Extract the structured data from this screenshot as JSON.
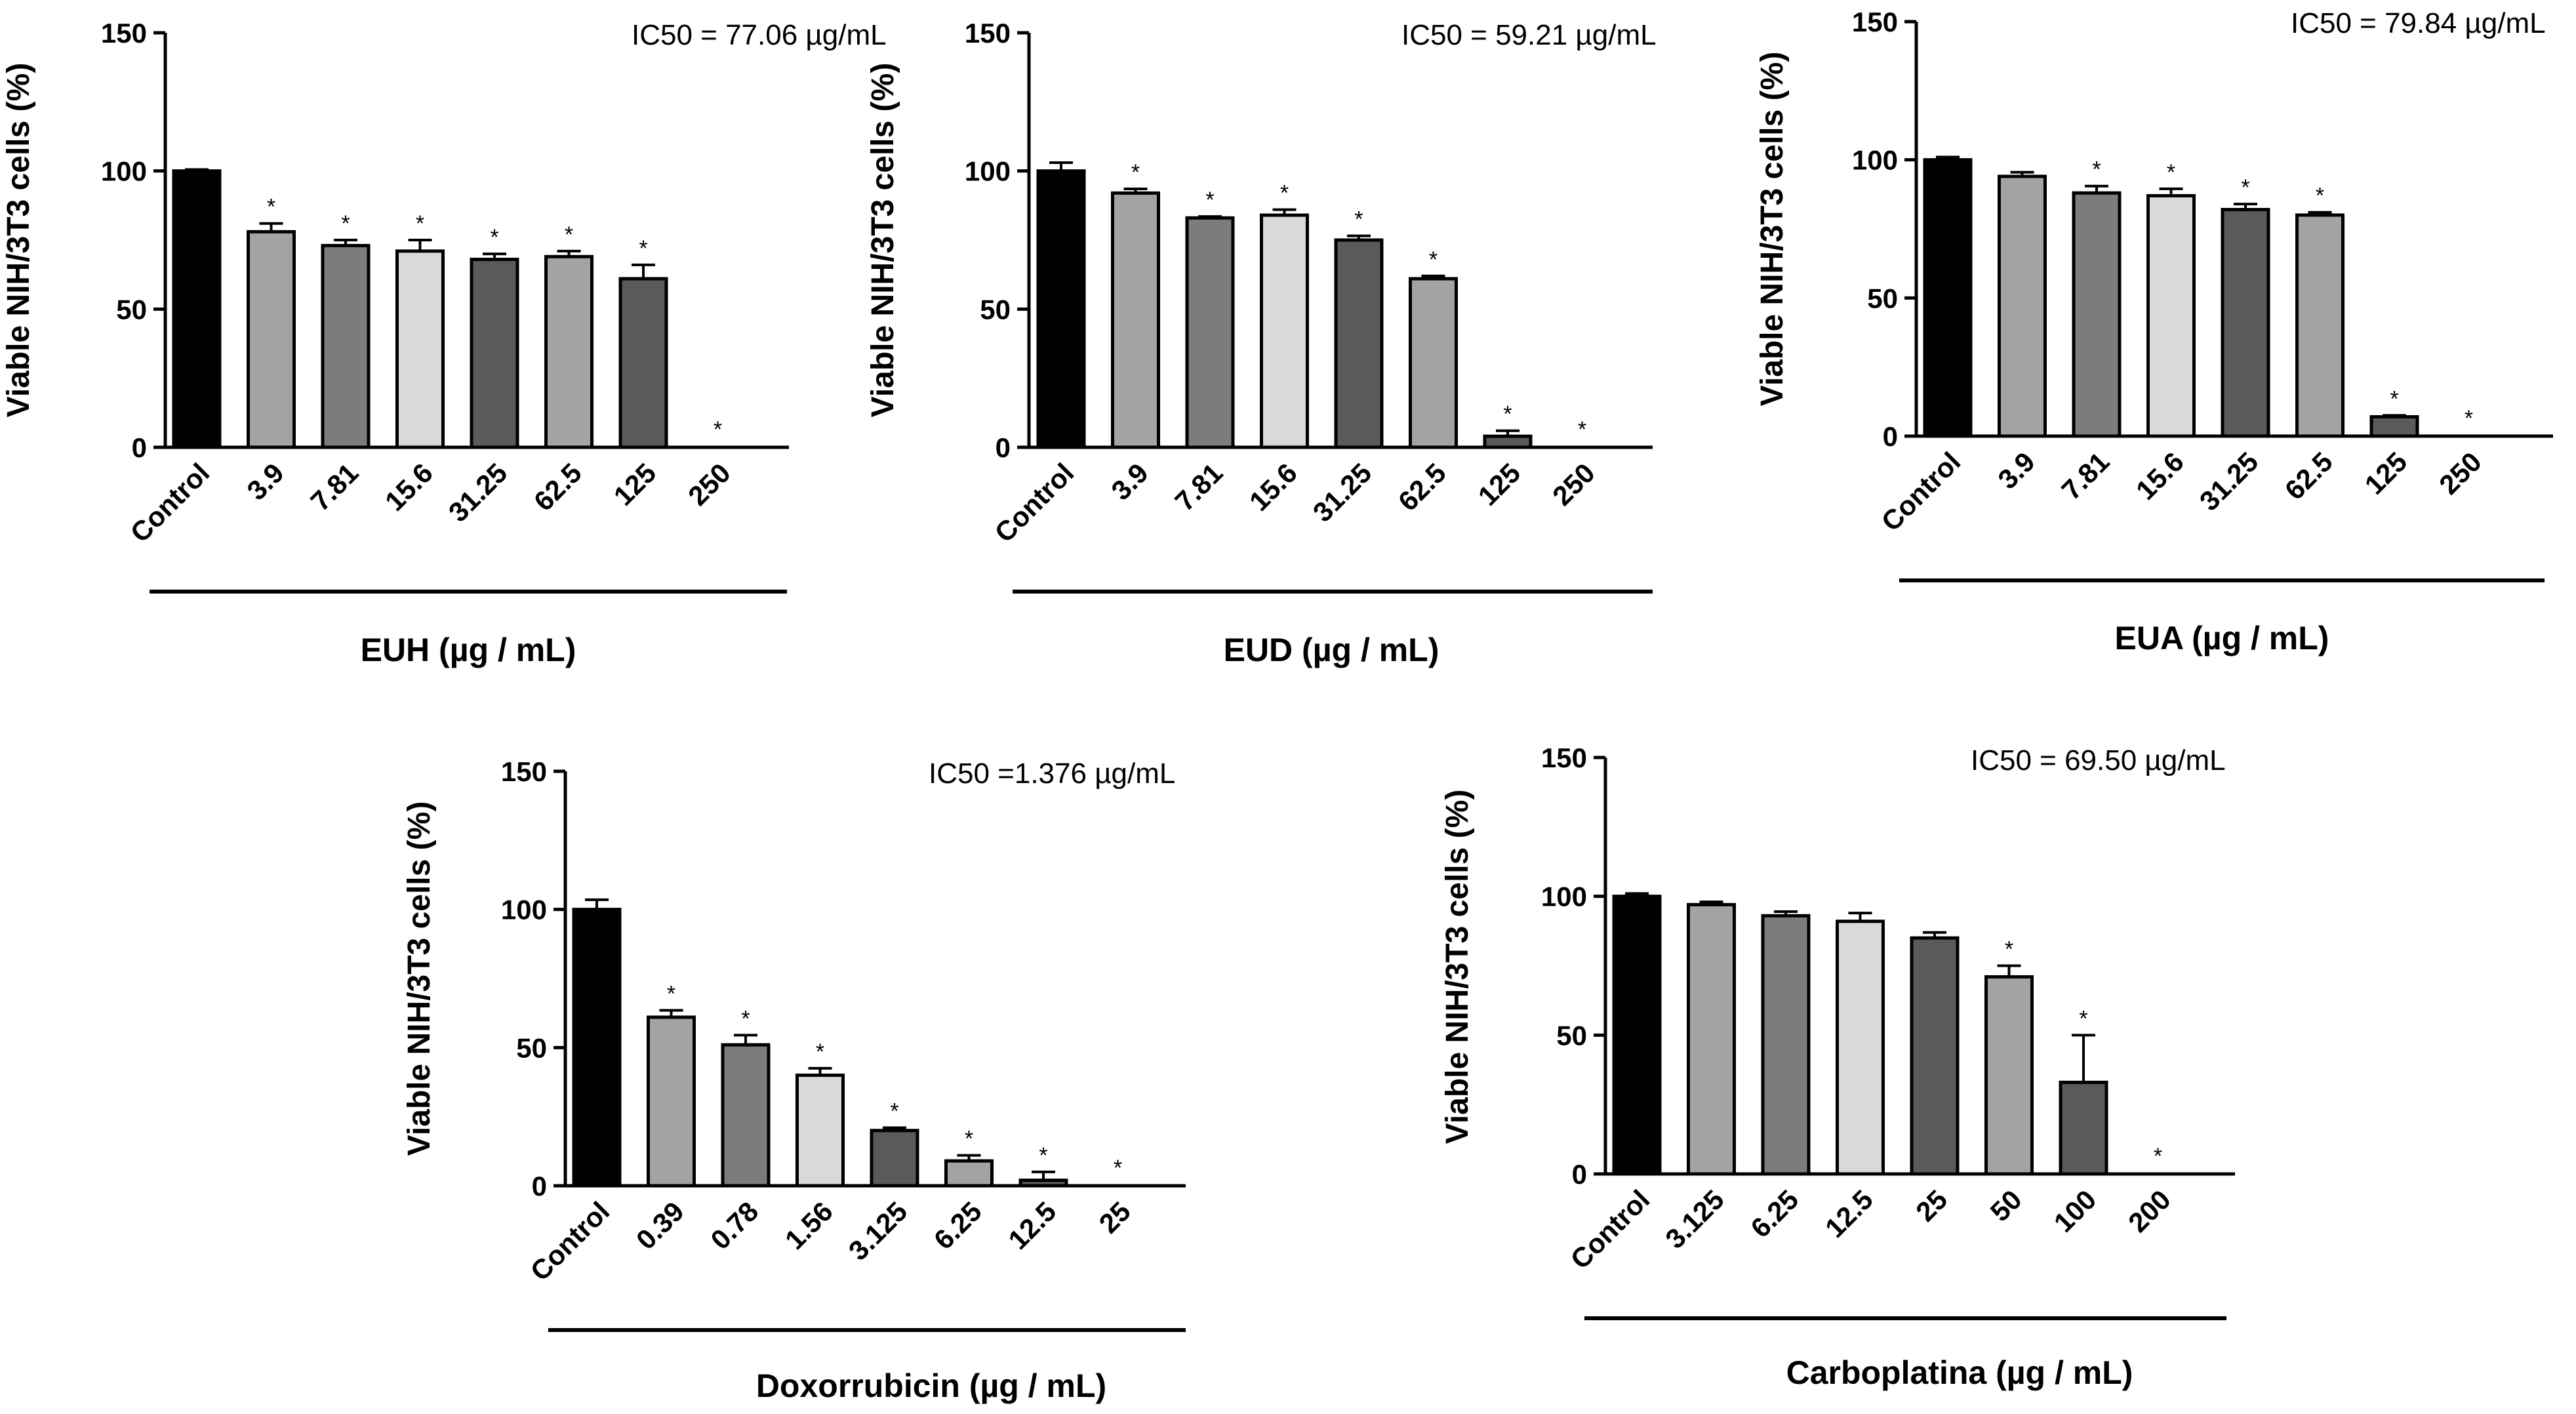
{
  "chart_data": [
    {
      "type": "bar",
      "title": "",
      "annotation": "IC50 = 77.06 µg/mL",
      "ylabel": "Viable NIH/3T3 cells (%)",
      "xlabel": "EUH (µg / mL)",
      "ylim": [
        0,
        150
      ],
      "yticks": [
        "0",
        "50",
        "100",
        "150"
      ],
      "categories": [
        "Control",
        "3.9",
        "7.81",
        "15.6",
        "31.25",
        "62.5",
        "125",
        "250"
      ],
      "values": [
        100,
        78,
        73,
        71,
        68,
        69,
        61,
        0
      ],
      "errors": [
        0.5,
        3,
        2,
        4,
        2,
        2,
        5,
        0
      ],
      "significance": [
        "",
        "*",
        "*",
        "*",
        "*",
        "*",
        "*",
        "*"
      ],
      "bar_colors": [
        "#000000",
        "#a3a3a6",
        "#7c7c7c",
        "#d9d9d9",
        "#5a5a5a",
        "#a3a3a6",
        "#5a5a5a",
        "#5a5a5a"
      ]
    },
    {
      "type": "bar",
      "title": "",
      "annotation": "IC50 = 59.21 µg/mL",
      "ylabel": "Viable NIH/3T3 cells (%)",
      "xlabel": "EUD (µg / mL)",
      "ylim": [
        0,
        150
      ],
      "yticks": [
        "0",
        "50",
        "100",
        "150"
      ],
      "categories": [
        "Control",
        "3.9",
        "7.81",
        "15.6",
        "31.25",
        "62.5",
        "125",
        "250"
      ],
      "values": [
        100,
        92,
        83,
        84,
        75,
        61,
        4,
        0
      ],
      "errors": [
        3,
        1.5,
        0.5,
        2,
        1.5,
        1,
        2,
        0
      ],
      "significance": [
        "",
        "*",
        "*",
        "*",
        "*",
        "*",
        "*",
        "*"
      ],
      "bar_colors": [
        "#000000",
        "#a3a3a6",
        "#7c7c7c",
        "#d9d9d9",
        "#5a5a5a",
        "#a3a3a6",
        "#5a5a5a",
        "#5a5a5a"
      ]
    },
    {
      "type": "bar",
      "title": "",
      "annotation": "IC50 = 79.84 µg/mL",
      "ylabel": "Viable NIH/3T3 cells (%)",
      "xlabel": "EUA (µg / mL)",
      "ylim": [
        0,
        150
      ],
      "yticks": [
        "0",
        "50",
        "100",
        "150"
      ],
      "categories": [
        "Control",
        "3.9",
        "7.81",
        "15.6",
        "31.25",
        "62.5",
        "125",
        "250"
      ],
      "values": [
        100,
        94,
        88,
        87,
        82,
        80,
        7,
        0
      ],
      "errors": [
        1,
        1.5,
        2.5,
        2.5,
        2,
        1,
        0.5,
        0
      ],
      "significance": [
        "",
        "",
        "*",
        "*",
        "*",
        "*",
        "*",
        "*"
      ],
      "bar_colors": [
        "#000000",
        "#a3a3a6",
        "#7c7c7c",
        "#d9d9d9",
        "#5a5a5a",
        "#a3a3a6",
        "#5a5a5a",
        "#5a5a5a"
      ]
    },
    {
      "type": "bar",
      "title": "",
      "annotation": "IC50 =1.376 µg/mL",
      "ylabel": "Viable NIH/3T3 cells (%)",
      "xlabel": "Doxorrubicin (µg / mL)",
      "ylim": [
        0,
        150
      ],
      "yticks": [
        "0",
        "50",
        "100",
        "150"
      ],
      "categories": [
        "Control",
        "0.39",
        "0.78",
        "1.56",
        "3.125",
        "6.25",
        "12.5",
        "25"
      ],
      "values": [
        100,
        61,
        51,
        40,
        20,
        9,
        2,
        0
      ],
      "errors": [
        3.5,
        2.5,
        3.5,
        2.5,
        1,
        2,
        3,
        0
      ],
      "significance": [
        "",
        "*",
        "*",
        "*",
        "*",
        "*",
        "*",
        "*"
      ],
      "bar_colors": [
        "#000000",
        "#a3a3a6",
        "#7c7c7c",
        "#d9d9d9",
        "#5a5a5a",
        "#a3a3a6",
        "#5a5a5a",
        "#5a5a5a"
      ]
    },
    {
      "type": "bar",
      "title": "",
      "annotation": "IC50 = 69.50 µg/mL",
      "ylabel": "Viable NIH/3T3 cells (%)",
      "xlabel": "Carboplatina (µg / mL)",
      "ylim": [
        0,
        150
      ],
      "yticks": [
        "0",
        "50",
        "100",
        "150"
      ],
      "categories": [
        "Control",
        "3.125",
        "6.25",
        "12.5",
        "25",
        "50",
        "100",
        "200"
      ],
      "values": [
        100,
        97,
        93,
        91,
        85,
        71,
        33,
        0
      ],
      "errors": [
        1,
        1,
        1.5,
        3,
        2,
        4,
        17,
        0
      ],
      "significance": [
        "",
        "",
        "",
        "",
        "",
        "*",
        "*",
        "*"
      ],
      "bar_colors": [
        "#000000",
        "#a3a3a6",
        "#7c7c7c",
        "#d9d9d9",
        "#5a5a5a",
        "#a3a3a6",
        "#5a5a5a",
        "#5a5a5a"
      ]
    }
  ]
}
